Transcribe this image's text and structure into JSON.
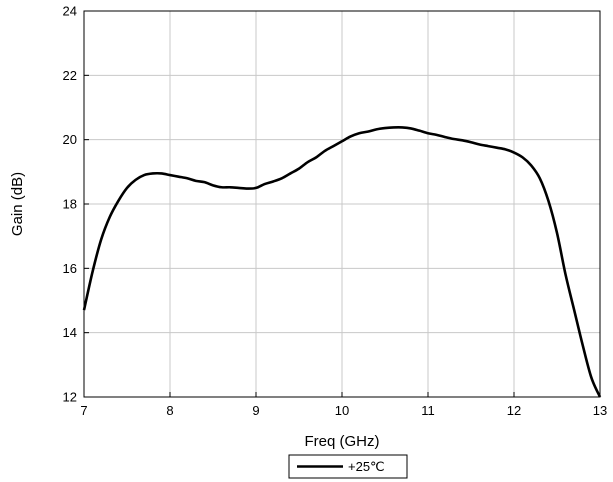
{
  "chart_data": {
    "type": "line",
    "title": "",
    "xlabel": "Freq (GHz)",
    "ylabel": "Gain (dB)",
    "xlim": [
      7,
      13
    ],
    "ylim": [
      12,
      24
    ],
    "xticks": [
      "7",
      "8",
      "9",
      "10",
      "11",
      "12",
      "13"
    ],
    "yticks": [
      "12",
      "14",
      "16",
      "18",
      "20",
      "22",
      "24"
    ],
    "grid": true,
    "legend_position": "bottom-center",
    "series": [
      {
        "name": "+25℃",
        "color": "#000000",
        "x": [
          7.0,
          7.1,
          7.2,
          7.3,
          7.4,
          7.5,
          7.6,
          7.7,
          7.8,
          7.9,
          8.0,
          8.1,
          8.2,
          8.3,
          8.4,
          8.5,
          8.6,
          8.7,
          8.8,
          8.9,
          9.0,
          9.1,
          9.2,
          9.3,
          9.4,
          9.5,
          9.6,
          9.7,
          9.8,
          9.9,
          10.0,
          10.1,
          10.2,
          10.3,
          10.4,
          10.5,
          10.6,
          10.7,
          10.8,
          10.9,
          11.0,
          11.1,
          11.2,
          11.3,
          11.4,
          11.5,
          11.6,
          11.7,
          11.8,
          11.9,
          12.0,
          12.1,
          12.2,
          12.3,
          12.4,
          12.5,
          12.6,
          12.7,
          12.8,
          12.9,
          13.0
        ],
        "y": [
          14.7,
          15.9,
          16.9,
          17.6,
          18.1,
          18.5,
          18.75,
          18.9,
          18.95,
          18.95,
          18.9,
          18.85,
          18.8,
          18.72,
          18.68,
          18.58,
          18.52,
          18.52,
          18.5,
          18.48,
          18.5,
          18.62,
          18.7,
          18.8,
          18.95,
          19.1,
          19.3,
          19.45,
          19.65,
          19.8,
          19.95,
          20.1,
          20.2,
          20.25,
          20.32,
          20.36,
          20.38,
          20.38,
          20.35,
          20.28,
          20.2,
          20.15,
          20.08,
          20.02,
          19.98,
          19.92,
          19.85,
          19.8,
          19.75,
          19.7,
          19.6,
          19.45,
          19.2,
          18.8,
          18.1,
          17.1,
          15.8,
          14.7,
          13.6,
          12.6,
          12.0
        ]
      }
    ]
  }
}
